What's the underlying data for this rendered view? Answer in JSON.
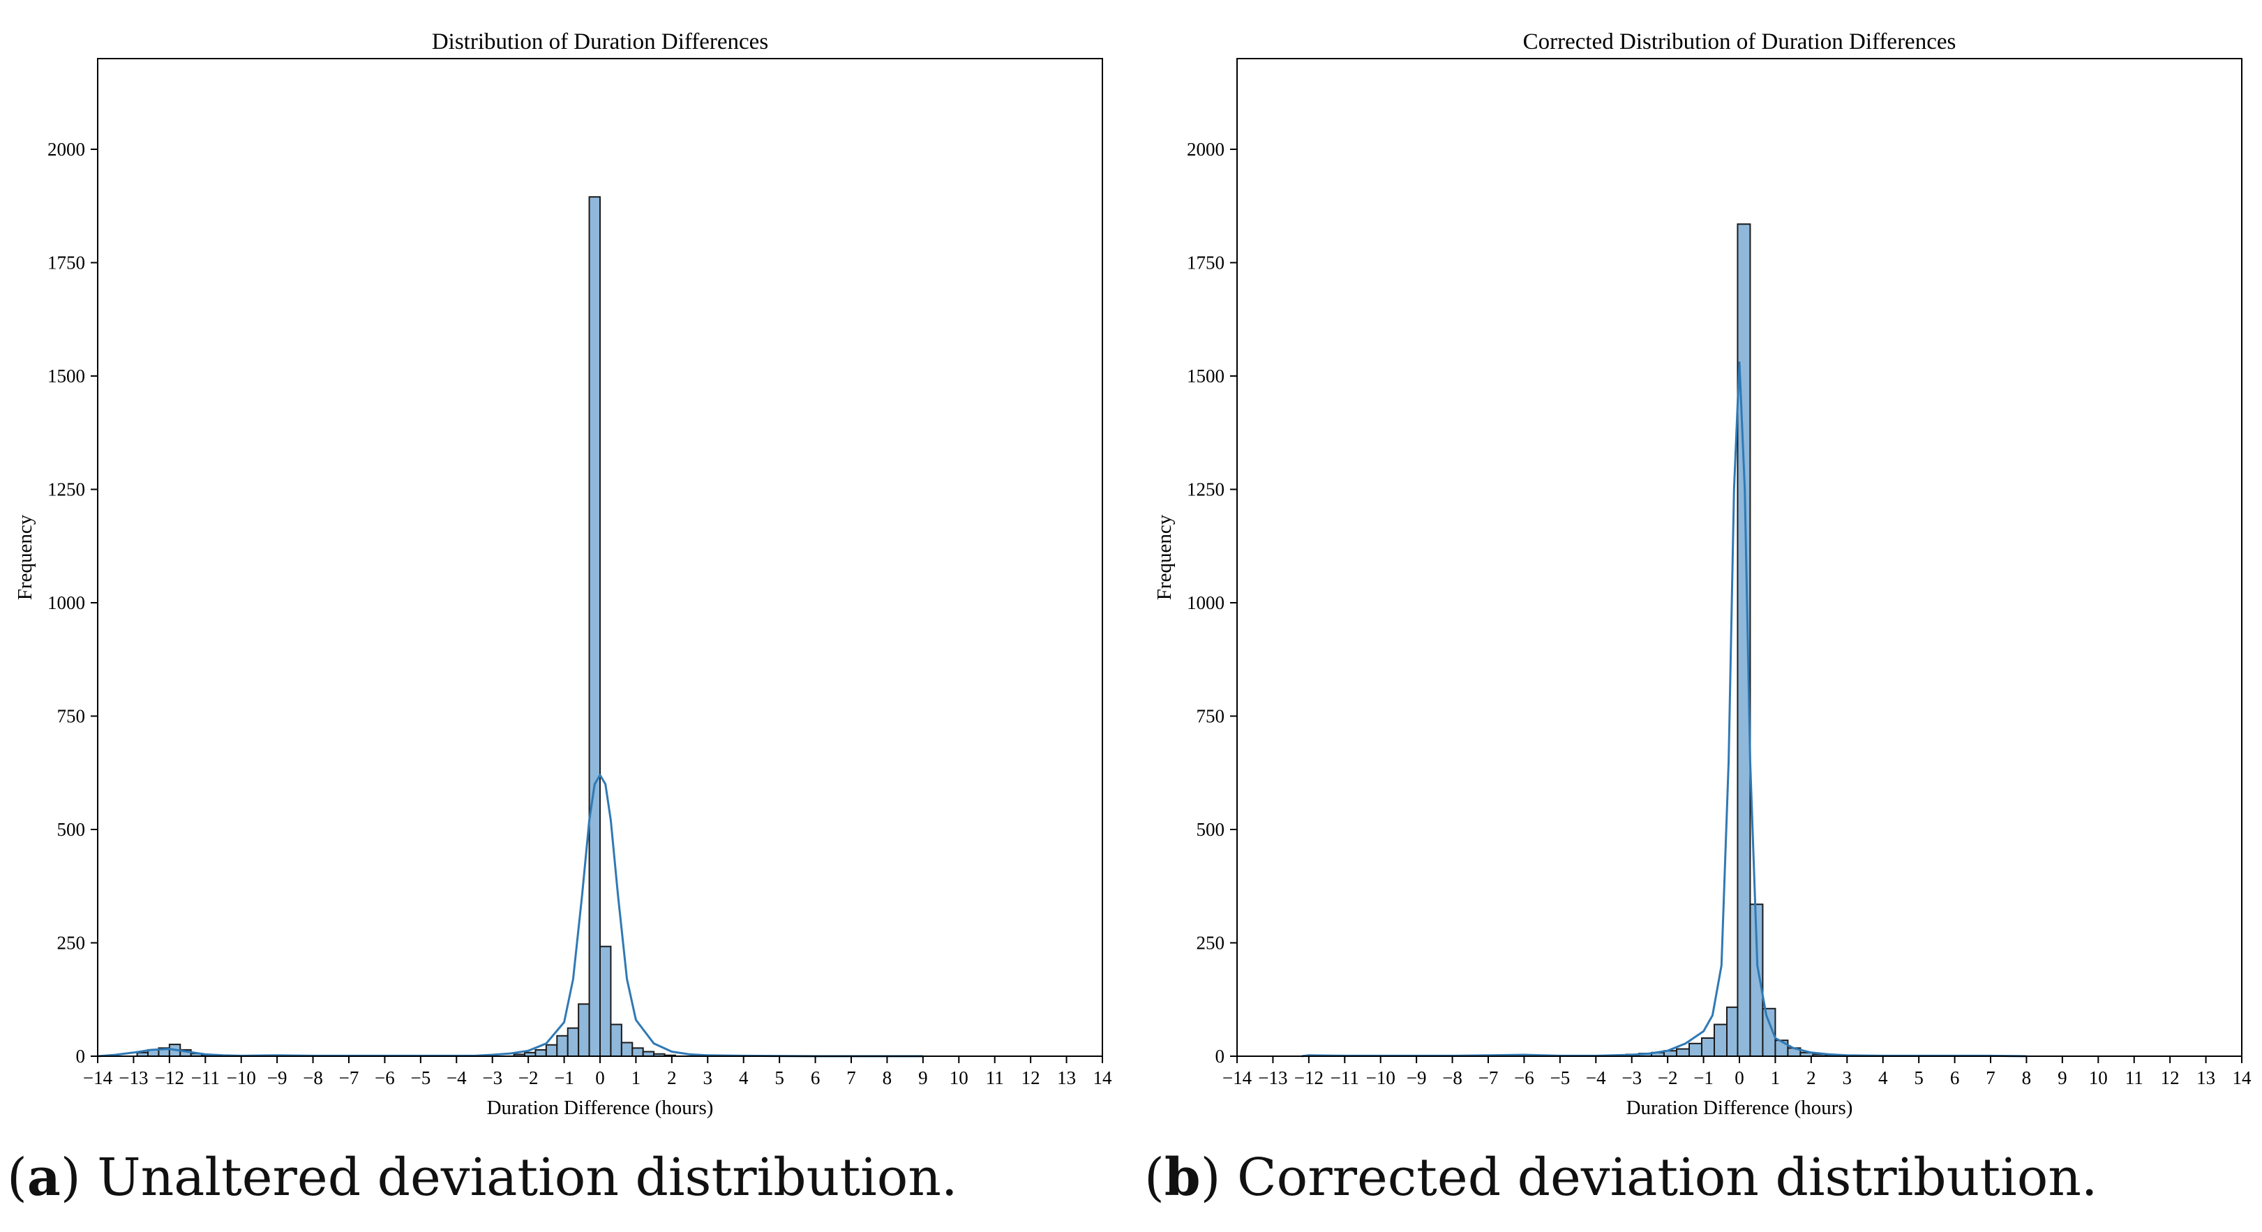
{
  "colors": {
    "bar_fill": "#8fb8da",
    "bar_edge": "#1a1a1a",
    "kde_line": "#2f79b5",
    "axis": "#000000"
  },
  "chart_data": [
    {
      "type": "bar",
      "panel": "a",
      "title": "Distribution of Duration Differences",
      "xlabel": "Duration Difference (hours)",
      "ylabel": "Frequency",
      "xlim": [
        -14,
        14
      ],
      "ylim": [
        0,
        2200
      ],
      "grid": false,
      "xticks": [
        -14,
        -13,
        -12,
        -11,
        -10,
        -9,
        -8,
        -7,
        -6,
        -5,
        -4,
        -3,
        -2,
        -1,
        0,
        1,
        2,
        3,
        4,
        5,
        6,
        7,
        8,
        9,
        10,
        11,
        12,
        13,
        14
      ],
      "xtick_labels": [
        "−14",
        "−13",
        "−12",
        "−11",
        "−10",
        "−9",
        "−8",
        "−7",
        "−6",
        "−5",
        "−4",
        "−3",
        "−2",
        "−1",
        "0",
        "1",
        "2",
        "3",
        "4",
        "5",
        "6",
        "7",
        "8",
        "9",
        "10",
        "11",
        "12",
        "13",
        "14"
      ],
      "yticks": [
        0,
        250,
        500,
        750,
        1000,
        1250,
        1500,
        1750,
        2000
      ],
      "ytick_labels": [
        "0",
        "250",
        "500",
        "750",
        "1000",
        "1250",
        "1500",
        "1750",
        "2000"
      ],
      "bin_width": 0.3,
      "bars": [
        {
          "x": -12.9,
          "value": 8
        },
        {
          "x": -12.6,
          "value": 14
        },
        {
          "x": -12.3,
          "value": 18
        },
        {
          "x": -12.0,
          "value": 26
        },
        {
          "x": -11.7,
          "value": 14
        },
        {
          "x": -11.4,
          "value": 6
        },
        {
          "x": -11.1,
          "value": 3
        },
        {
          "x": -9.3,
          "value": 2
        },
        {
          "x": -2.4,
          "value": 4
        },
        {
          "x": -2.1,
          "value": 8
        },
        {
          "x": -1.8,
          "value": 14
        },
        {
          "x": -1.5,
          "value": 25
        },
        {
          "x": -1.2,
          "value": 45
        },
        {
          "x": -0.9,
          "value": 62
        },
        {
          "x": -0.6,
          "value": 115
        },
        {
          "x": -0.3,
          "value": 1895
        },
        {
          "x": 0.0,
          "value": 242
        },
        {
          "x": 0.3,
          "value": 70
        },
        {
          "x": 0.6,
          "value": 30
        },
        {
          "x": 0.9,
          "value": 18
        },
        {
          "x": 1.2,
          "value": 10
        },
        {
          "x": 1.5,
          "value": 5
        },
        {
          "x": 1.8,
          "value": 2
        }
      ],
      "kde": {
        "x": [
          -14,
          -13.5,
          -13,
          -12.5,
          -12,
          -11.5,
          -11,
          -10.5,
          -10,
          -9,
          -8,
          -6,
          -4,
          -3.5,
          -3,
          -2.5,
          -2,
          -1.5,
          -1,
          -0.75,
          -0.5,
          -0.3,
          -0.15,
          0,
          0.15,
          0.3,
          0.5,
          0.75,
          1,
          1.5,
          2,
          2.5,
          3,
          4,
          6,
          8,
          9
        ],
        "y": [
          0,
          3,
          8,
          14,
          16,
          10,
          4,
          2,
          1,
          2,
          1,
          1,
          1,
          1,
          3,
          6,
          12,
          28,
          75,
          170,
          355,
          520,
          600,
          620,
          600,
          520,
          355,
          170,
          80,
          28,
          10,
          4,
          2,
          1,
          0,
          0,
          0
        ]
      }
    },
    {
      "type": "bar",
      "panel": "b",
      "title": "Corrected Distribution of Duration Differences",
      "xlabel": "Duration Difference (hours)",
      "ylabel": "Frequency",
      "xlim": [
        -14,
        14
      ],
      "ylim": [
        0,
        2200
      ],
      "grid": false,
      "xticks": [
        -14,
        -13,
        -12,
        -11,
        -10,
        -9,
        -8,
        -7,
        -6,
        -5,
        -4,
        -3,
        -2,
        -1,
        0,
        1,
        2,
        3,
        4,
        5,
        6,
        7,
        8,
        9,
        10,
        11,
        12,
        13,
        14
      ],
      "xtick_labels": [
        "−14",
        "−13",
        "−12",
        "−11",
        "−10",
        "−9",
        "−8",
        "−7",
        "−6",
        "−5",
        "−4",
        "−3",
        "−2",
        "−1",
        "0",
        "1",
        "2",
        "3",
        "4",
        "5",
        "6",
        "7",
        "8",
        "9",
        "10",
        "11",
        "12",
        "13",
        "14"
      ],
      "yticks": [
        0,
        250,
        500,
        750,
        1000,
        1250,
        1500,
        1750,
        2000
      ],
      "ytick_labels": [
        "0",
        "250",
        "500",
        "750",
        "1000",
        "1250",
        "1500",
        "1750",
        "2000"
      ],
      "bin_width": 0.35,
      "bars": [
        {
          "x": -12.0,
          "value": 2
        },
        {
          "x": -6.0,
          "value": 3
        },
        {
          "x": -3.15,
          "value": 4
        },
        {
          "x": -2.8,
          "value": 6
        },
        {
          "x": -2.45,
          "value": 8
        },
        {
          "x": -2.1,
          "value": 12
        },
        {
          "x": -1.75,
          "value": 16
        },
        {
          "x": -1.4,
          "value": 28
        },
        {
          "x": -1.05,
          "value": 40
        },
        {
          "x": -0.7,
          "value": 70
        },
        {
          "x": -0.35,
          "value": 108
        },
        {
          "x": -0.05,
          "value": 1835
        },
        {
          "x": 0.3,
          "value": 335
        },
        {
          "x": 0.65,
          "value": 105
        },
        {
          "x": 1.0,
          "value": 35
        },
        {
          "x": 1.35,
          "value": 18
        },
        {
          "x": 1.7,
          "value": 8
        },
        {
          "x": 2.05,
          "value": 4
        },
        {
          "x": 2.4,
          "value": 2
        }
      ],
      "kde": {
        "x": [
          -12.2,
          -12,
          -11,
          -10,
          -8,
          -7,
          -6,
          -5,
          -4,
          -3,
          -2.5,
          -2,
          -1.5,
          -1,
          -0.75,
          -0.5,
          -0.3,
          -0.15,
          0,
          0.15,
          0.3,
          0.5,
          0.75,
          1,
          1.5,
          2,
          2.5,
          3,
          4,
          5,
          6,
          7,
          8
        ],
        "y": [
          0,
          2,
          1,
          1,
          1,
          2,
          3,
          1,
          1,
          3,
          6,
          12,
          28,
          55,
          90,
          200,
          650,
          1250,
          1530,
          1250,
          650,
          200,
          90,
          40,
          18,
          8,
          4,
          2,
          1,
          1,
          1,
          1,
          0
        ]
      }
    }
  ],
  "captions": [
    {
      "label": "a",
      "text": ") Unaltered deviation distribution."
    },
    {
      "label": "b",
      "text": ") Corrected deviation distribution."
    }
  ]
}
